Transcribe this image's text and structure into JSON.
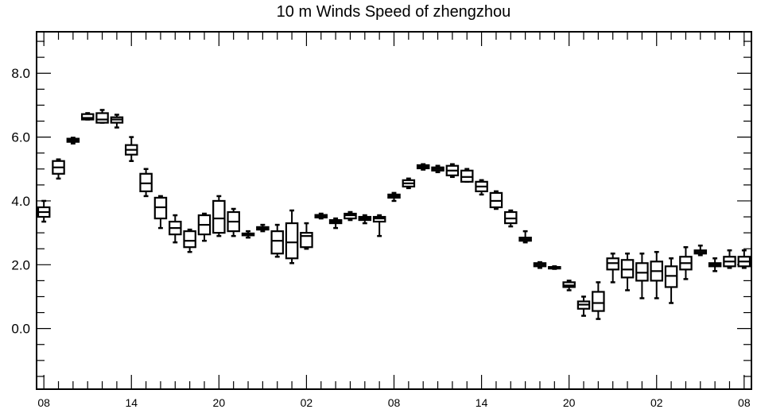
{
  "chart_data": {
    "type": "boxplot",
    "title": "10 m Winds Speed of zhengzhou",
    "xlabel": "",
    "ylabel": "",
    "ylim": [
      -1.9,
      9.3
    ],
    "x_range": [
      7.5,
      56.5
    ],
    "grid": false,
    "legend": "none",
    "colors": {
      "box": "#000000",
      "background": "#ffffff"
    },
    "y_ticks": [
      {
        "value": 0.0,
        "label": "0.0"
      },
      {
        "value": 2.0,
        "label": "2.0"
      },
      {
        "value": 4.0,
        "label": "4.0"
      },
      {
        "value": 6.0,
        "label": "6.0"
      },
      {
        "value": 8.0,
        "label": "8.0"
      }
    ],
    "x_ticks": [
      {
        "x": 8,
        "label": "08"
      },
      {
        "x": 14,
        "label": "14"
      },
      {
        "x": 20,
        "label": "20"
      },
      {
        "x": 26,
        "label": "02"
      },
      {
        "x": 32,
        "label": "08"
      },
      {
        "x": 38,
        "label": "14"
      },
      {
        "x": 44,
        "label": "20"
      },
      {
        "x": 50,
        "label": "02"
      },
      {
        "x": 56,
        "label": "08"
      }
    ],
    "boxes": [
      {
        "x": 8,
        "min": 3.35,
        "q1": 3.5,
        "median": 3.65,
        "q3": 3.8,
        "max": 4.0
      },
      {
        "x": 9,
        "min": 4.7,
        "q1": 4.85,
        "median": 5.05,
        "q3": 5.25,
        "max": 5.3
      },
      {
        "x": 10,
        "min": 5.8,
        "q1": 5.85,
        "median": 5.9,
        "q3": 5.95,
        "max": 5.98
      },
      {
        "x": 11,
        "min": 6.55,
        "q1": 6.55,
        "median": 6.6,
        "q3": 6.72,
        "max": 6.75
      },
      {
        "x": 12,
        "min": 6.45,
        "q1": 6.45,
        "median": 6.55,
        "q3": 6.75,
        "max": 6.85
      },
      {
        "x": 13,
        "min": 6.3,
        "q1": 6.45,
        "median": 6.55,
        "q3": 6.62,
        "max": 6.7
      },
      {
        "x": 14,
        "min": 5.25,
        "q1": 5.45,
        "median": 5.6,
        "q3": 5.75,
        "max": 6.0
      },
      {
        "x": 15,
        "min": 4.15,
        "q1": 4.3,
        "median": 4.55,
        "q3": 4.85,
        "max": 5.0
      },
      {
        "x": 16,
        "min": 3.15,
        "q1": 3.45,
        "median": 3.8,
        "q3": 4.1,
        "max": 4.15
      },
      {
        "x": 17,
        "min": 2.7,
        "q1": 2.95,
        "median": 3.15,
        "q3": 3.35,
        "max": 3.55
      },
      {
        "x": 18,
        "min": 2.4,
        "q1": 2.55,
        "median": 2.75,
        "q3": 3.05,
        "max": 3.1
      },
      {
        "x": 19,
        "min": 2.75,
        "q1": 2.95,
        "median": 3.25,
        "q3": 3.55,
        "max": 3.6
      },
      {
        "x": 20,
        "min": 2.9,
        "q1": 3.0,
        "median": 3.45,
        "q3": 4.0,
        "max": 4.15
      },
      {
        "x": 21,
        "min": 2.9,
        "q1": 3.05,
        "median": 3.35,
        "q3": 3.65,
        "max": 3.75
      },
      {
        "x": 22,
        "min": 2.85,
        "q1": 2.92,
        "median": 2.95,
        "q3": 2.98,
        "max": 3.05
      },
      {
        "x": 23,
        "min": 3.05,
        "q1": 3.1,
        "median": 3.15,
        "q3": 3.18,
        "max": 3.25
      },
      {
        "x": 24,
        "min": 2.25,
        "q1": 2.35,
        "median": 2.75,
        "q3": 3.05,
        "max": 3.25
      },
      {
        "x": 25,
        "min": 2.05,
        "q1": 2.2,
        "median": 2.7,
        "q3": 3.3,
        "max": 3.7
      },
      {
        "x": 26,
        "min": 2.5,
        "q1": 2.55,
        "median": 2.9,
        "q3": 3.0,
        "max": 3.3
      },
      {
        "x": 27,
        "min": 3.45,
        "q1": 3.48,
        "median": 3.52,
        "q3": 3.56,
        "max": 3.6
      },
      {
        "x": 28,
        "min": 3.15,
        "q1": 3.3,
        "median": 3.35,
        "q3": 3.4,
        "max": 3.45
      },
      {
        "x": 29,
        "min": 3.4,
        "q1": 3.45,
        "median": 3.55,
        "q3": 3.6,
        "max": 3.65
      },
      {
        "x": 30,
        "min": 3.3,
        "q1": 3.4,
        "median": 3.45,
        "q3": 3.5,
        "max": 3.55
      },
      {
        "x": 31,
        "min": 2.9,
        "q1": 3.35,
        "median": 3.45,
        "q3": 3.5,
        "max": 3.55
      },
      {
        "x": 32,
        "min": 4.0,
        "q1": 4.1,
        "median": 4.15,
        "q3": 4.2,
        "max": 4.25
      },
      {
        "x": 33,
        "min": 4.4,
        "q1": 4.45,
        "median": 4.55,
        "q3": 4.65,
        "max": 4.7
      },
      {
        "x": 34,
        "min": 4.98,
        "q1": 5.02,
        "median": 5.07,
        "q3": 5.12,
        "max": 5.15
      },
      {
        "x": 35,
        "min": 4.9,
        "q1": 4.95,
        "median": 5.0,
        "q3": 5.05,
        "max": 5.1
      },
      {
        "x": 36,
        "min": 4.75,
        "q1": 4.8,
        "median": 4.95,
        "q3": 5.1,
        "max": 5.15
      },
      {
        "x": 37,
        "min": 4.6,
        "q1": 4.6,
        "median": 4.75,
        "q3": 4.95,
        "max": 5.0
      },
      {
        "x": 38,
        "min": 4.2,
        "q1": 4.3,
        "median": 4.45,
        "q3": 4.6,
        "max": 4.65
      },
      {
        "x": 39,
        "min": 3.75,
        "q1": 3.8,
        "median": 4.0,
        "q3": 4.25,
        "max": 4.3
      },
      {
        "x": 40,
        "min": 3.2,
        "q1": 3.3,
        "median": 3.45,
        "q3": 3.65,
        "max": 3.7
      },
      {
        "x": 41,
        "min": 2.7,
        "q1": 2.75,
        "median": 2.8,
        "q3": 2.85,
        "max": 3.05
      },
      {
        "x": 42,
        "min": 1.9,
        "q1": 1.95,
        "median": 2.0,
        "q3": 2.05,
        "max": 2.08
      },
      {
        "x": 43,
        "min": 1.87,
        "q1": 1.88,
        "median": 1.9,
        "q3": 1.93,
        "max": 1.95
      },
      {
        "x": 44,
        "min": 1.2,
        "q1": 1.3,
        "median": 1.35,
        "q3": 1.45,
        "max": 1.5
      },
      {
        "x": 45,
        "min": 0.4,
        "q1": 0.62,
        "median": 0.75,
        "q3": 0.85,
        "max": 1.0
      },
      {
        "x": 46,
        "min": 0.3,
        "q1": 0.55,
        "median": 0.8,
        "q3": 1.15,
        "max": 1.45
      },
      {
        "x": 47,
        "min": 1.45,
        "q1": 1.85,
        "median": 2.05,
        "q3": 2.2,
        "max": 2.35
      },
      {
        "x": 48,
        "min": 1.2,
        "q1": 1.6,
        "median": 1.85,
        "q3": 2.15,
        "max": 2.35
      },
      {
        "x": 49,
        "min": 0.95,
        "q1": 1.5,
        "median": 1.75,
        "q3": 2.05,
        "max": 2.35
      },
      {
        "x": 50,
        "min": 0.95,
        "q1": 1.5,
        "median": 1.8,
        "q3": 2.1,
        "max": 2.4
      },
      {
        "x": 51,
        "min": 0.8,
        "q1": 1.3,
        "median": 1.65,
        "q3": 1.95,
        "max": 2.2
      },
      {
        "x": 52,
        "min": 1.55,
        "q1": 1.85,
        "median": 2.05,
        "q3": 2.25,
        "max": 2.55
      },
      {
        "x": 53,
        "min": 2.3,
        "q1": 2.35,
        "median": 2.4,
        "q3": 2.45,
        "max": 2.6
      },
      {
        "x": 54,
        "min": 1.8,
        "q1": 1.95,
        "median": 2.0,
        "q3": 2.05,
        "max": 2.2
      },
      {
        "x": 55,
        "min": 1.9,
        "q1": 1.95,
        "median": 2.1,
        "q3": 2.25,
        "max": 2.45
      },
      {
        "x": 56,
        "min": 1.9,
        "q1": 1.95,
        "median": 2.1,
        "q3": 2.25,
        "max": 2.45
      }
    ]
  }
}
